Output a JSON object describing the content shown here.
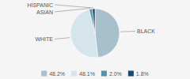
{
  "chart_data": {
    "type": "pie",
    "categories": [
      "BLACK",
      "WHITE",
      "ASIAN",
      "HISPANIC"
    ],
    "values": [
      48.2,
      48.1,
      2.0,
      1.8
    ],
    "value_labels": [
      "48.2%",
      "48.1%",
      "2.0%",
      "1.8%"
    ],
    "colors": [
      "#a8bfcc",
      "#d6e4ec",
      "#5a8fa8",
      "#1a4a6b"
    ],
    "legend": "bottom"
  }
}
